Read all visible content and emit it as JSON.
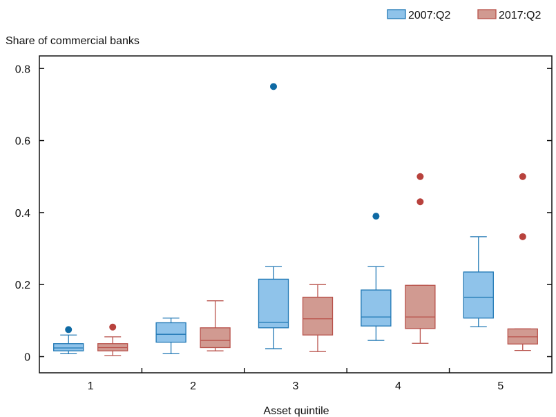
{
  "chart_data": {
    "type": "box",
    "ylabel": "Share of commercial banks",
    "xlabel": "Asset quintile",
    "categories": [
      "1",
      "2",
      "3",
      "4",
      "5"
    ],
    "ylim": [
      -0.045,
      0.835
    ],
    "yticks": [
      0,
      0.2,
      0.4,
      0.6,
      0.8
    ],
    "ytick_labels": [
      "0",
      "0.2",
      "0.4",
      "0.6",
      "0.8"
    ],
    "legend_position": "top-right",
    "series": [
      {
        "name": "2007:Q2",
        "fill": "#8fc3ea",
        "stroke": "#1f77b4",
        "outlier_color": "#0f6aa4",
        "boxes": [
          {
            "whisker_low": 0.008,
            "q1": 0.016,
            "median": 0.024,
            "q3": 0.036,
            "whisker_high": 0.06,
            "outliers": [
              0.075
            ]
          },
          {
            "whisker_low": 0.008,
            "q1": 0.04,
            "median": 0.062,
            "q3": 0.094,
            "whisker_high": 0.107,
            "outliers": []
          },
          {
            "whisker_low": 0.022,
            "q1": 0.08,
            "median": 0.095,
            "q3": 0.215,
            "whisker_high": 0.25,
            "outliers": [
              0.75
            ]
          },
          {
            "whisker_low": 0.045,
            "q1": 0.085,
            "median": 0.11,
            "q3": 0.185,
            "whisker_high": 0.25,
            "outliers": [
              0.39
            ]
          },
          {
            "whisker_low": 0.083,
            "q1": 0.107,
            "median": 0.165,
            "q3": 0.235,
            "whisker_high": 0.333,
            "outliers": []
          }
        ]
      },
      {
        "name": "2017:Q2",
        "fill": "#d19a91",
        "stroke": "#b8514a",
        "outlier_color": "#b8423d",
        "boxes": [
          {
            "whisker_low": 0.003,
            "q1": 0.016,
            "median": 0.025,
            "q3": 0.036,
            "whisker_high": 0.055,
            "outliers": [
              0.082
            ]
          },
          {
            "whisker_low": 0.016,
            "q1": 0.025,
            "median": 0.045,
            "q3": 0.08,
            "whisker_high": 0.155,
            "outliers": []
          },
          {
            "whisker_low": 0.014,
            "q1": 0.06,
            "median": 0.105,
            "q3": 0.165,
            "whisker_high": 0.2,
            "outliers": []
          },
          {
            "whisker_low": 0.037,
            "q1": 0.078,
            "median": 0.11,
            "q3": 0.198,
            "whisker_high": 0.198,
            "outliers": [
              0.43,
              0.5
            ]
          },
          {
            "whisker_low": 0.017,
            "q1": 0.035,
            "median": 0.055,
            "q3": 0.077,
            "whisker_high": 0.077,
            "outliers": [
              0.333,
              0.5
            ]
          }
        ]
      }
    ]
  }
}
